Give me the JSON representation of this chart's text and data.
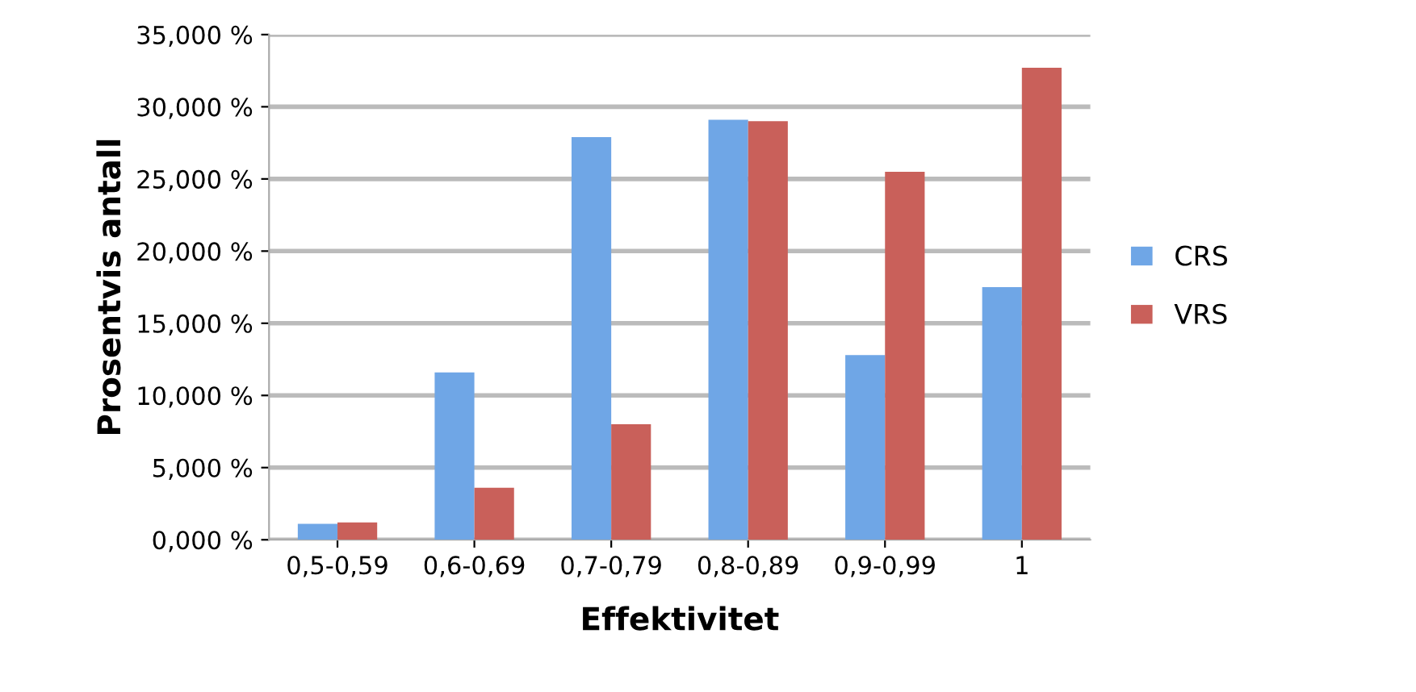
{
  "chart_data": {
    "type": "bar",
    "xlabel": "Effektivitet",
    "ylabel": "Prosentvis antall",
    "categories": [
      "0,5-0,59",
      "0,6-0,69",
      "0,7-0,79",
      "0,8-0,89",
      "0,9-0,99",
      "1"
    ],
    "series": [
      {
        "name": "CRS",
        "color": "#6fa6e6",
        "values": [
          1.1,
          11.6,
          27.9,
          29.1,
          12.8,
          17.5
        ]
      },
      {
        "name": "VRS",
        "color": "#c9605a",
        "values": [
          1.2,
          3.6,
          8.0,
          29.0,
          25.5,
          32.7
        ]
      }
    ],
    "ylim": [
      0,
      35
    ],
    "yticks": [
      {
        "value": 0,
        "label": "0,000 %"
      },
      {
        "value": 5,
        "label": "5,000 %"
      },
      {
        "value": 10,
        "label": "10,000 %"
      },
      {
        "value": 15,
        "label": "15,000 %"
      },
      {
        "value": 20,
        "label": "20,000 %"
      },
      {
        "value": 25,
        "label": "25,000 %"
      },
      {
        "value": 30,
        "label": "30,000 %"
      },
      {
        "value": 35,
        "label": "35,000 %"
      }
    ],
    "grid": "y",
    "legend": "right"
  }
}
